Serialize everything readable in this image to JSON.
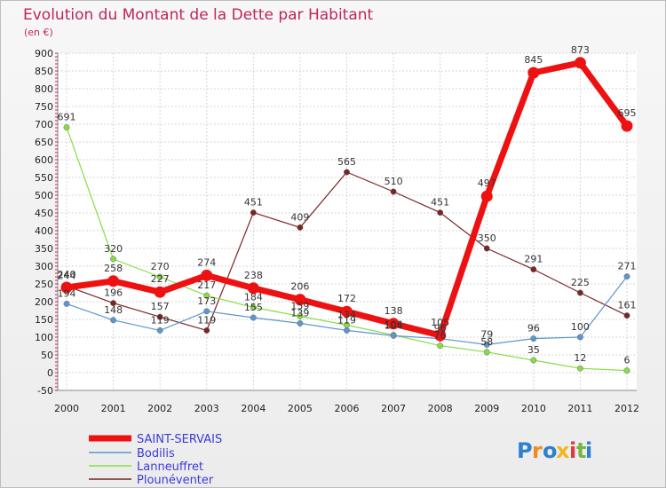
{
  "chart_data": {
    "type": "line",
    "title": "Evolution du Montant de la Dette par Habitant",
    "subtitle": "(en €)",
    "x": [
      "2000",
      "2001",
      "2002",
      "2003",
      "2004",
      "2005",
      "2006",
      "2007",
      "2008",
      "2009",
      "2010",
      "2011",
      "2012"
    ],
    "ylim": [
      -50,
      900
    ],
    "yticks": [
      -50,
      0,
      50,
      100,
      150,
      200,
      250,
      300,
      350,
      400,
      450,
      500,
      550,
      600,
      650,
      700,
      750,
      800,
      850,
      900
    ],
    "grid": true,
    "legend_position": "bottom-left",
    "series": [
      {
        "name": "SAINT-SERVAIS",
        "color": "#ee1111",
        "values": [
          240,
          258,
          227,
          274,
          238,
          206,
          172,
          138,
          105,
          497,
          845,
          873,
          695
        ],
        "labels": [
          "240",
          "258",
          "227",
          "274",
          "238",
          "206",
          "172",
          "138",
          "105",
          "497",
          "845",
          "873",
          "695"
        ]
      },
      {
        "name": "Bodilis",
        "color": "#5b97cf",
        "values": [
          194,
          148,
          119,
          173,
          155,
          139,
          119,
          104,
          96,
          79,
          96,
          100,
          271
        ],
        "labels": [
          "194",
          "148",
          "119",
          "173",
          "155",
          "139",
          "119",
          "104",
          "96",
          "79",
          "96",
          "100",
          "271"
        ]
      },
      {
        "name": "Lanneuffret",
        "color": "#88dd44",
        "values": [
          691,
          320,
          270,
          217,
          184,
          159,
          134,
          106,
          76,
          58,
          35,
          12,
          6
        ],
        "labels": [
          "691",
          "320",
          "270",
          "217",
          "184",
          "159",
          "134",
          "106",
          "76",
          "58",
          "35",
          "12",
          "6"
        ]
      },
      {
        "name": "Plounéventer",
        "color": "#7a2424",
        "values": [
          244,
          196,
          157,
          119,
          451,
          409,
          565,
          510,
          451,
          350,
          291,
          225,
          161
        ],
        "labels": [
          "244",
          "196",
          "157",
          "119",
          "451",
          "409",
          "565",
          "510",
          "451",
          "350",
          "291",
          "225",
          "161"
        ]
      }
    ]
  },
  "logo": {
    "letters": [
      "P",
      "r",
      "o",
      "x",
      "i",
      "t",
      "i"
    ],
    "colors": [
      "#2d7fd0",
      "#f28a1d",
      "#2d7fd0",
      "#f2b71d",
      "#e03a3a",
      "#73b843",
      "#2d7fd0"
    ]
  }
}
